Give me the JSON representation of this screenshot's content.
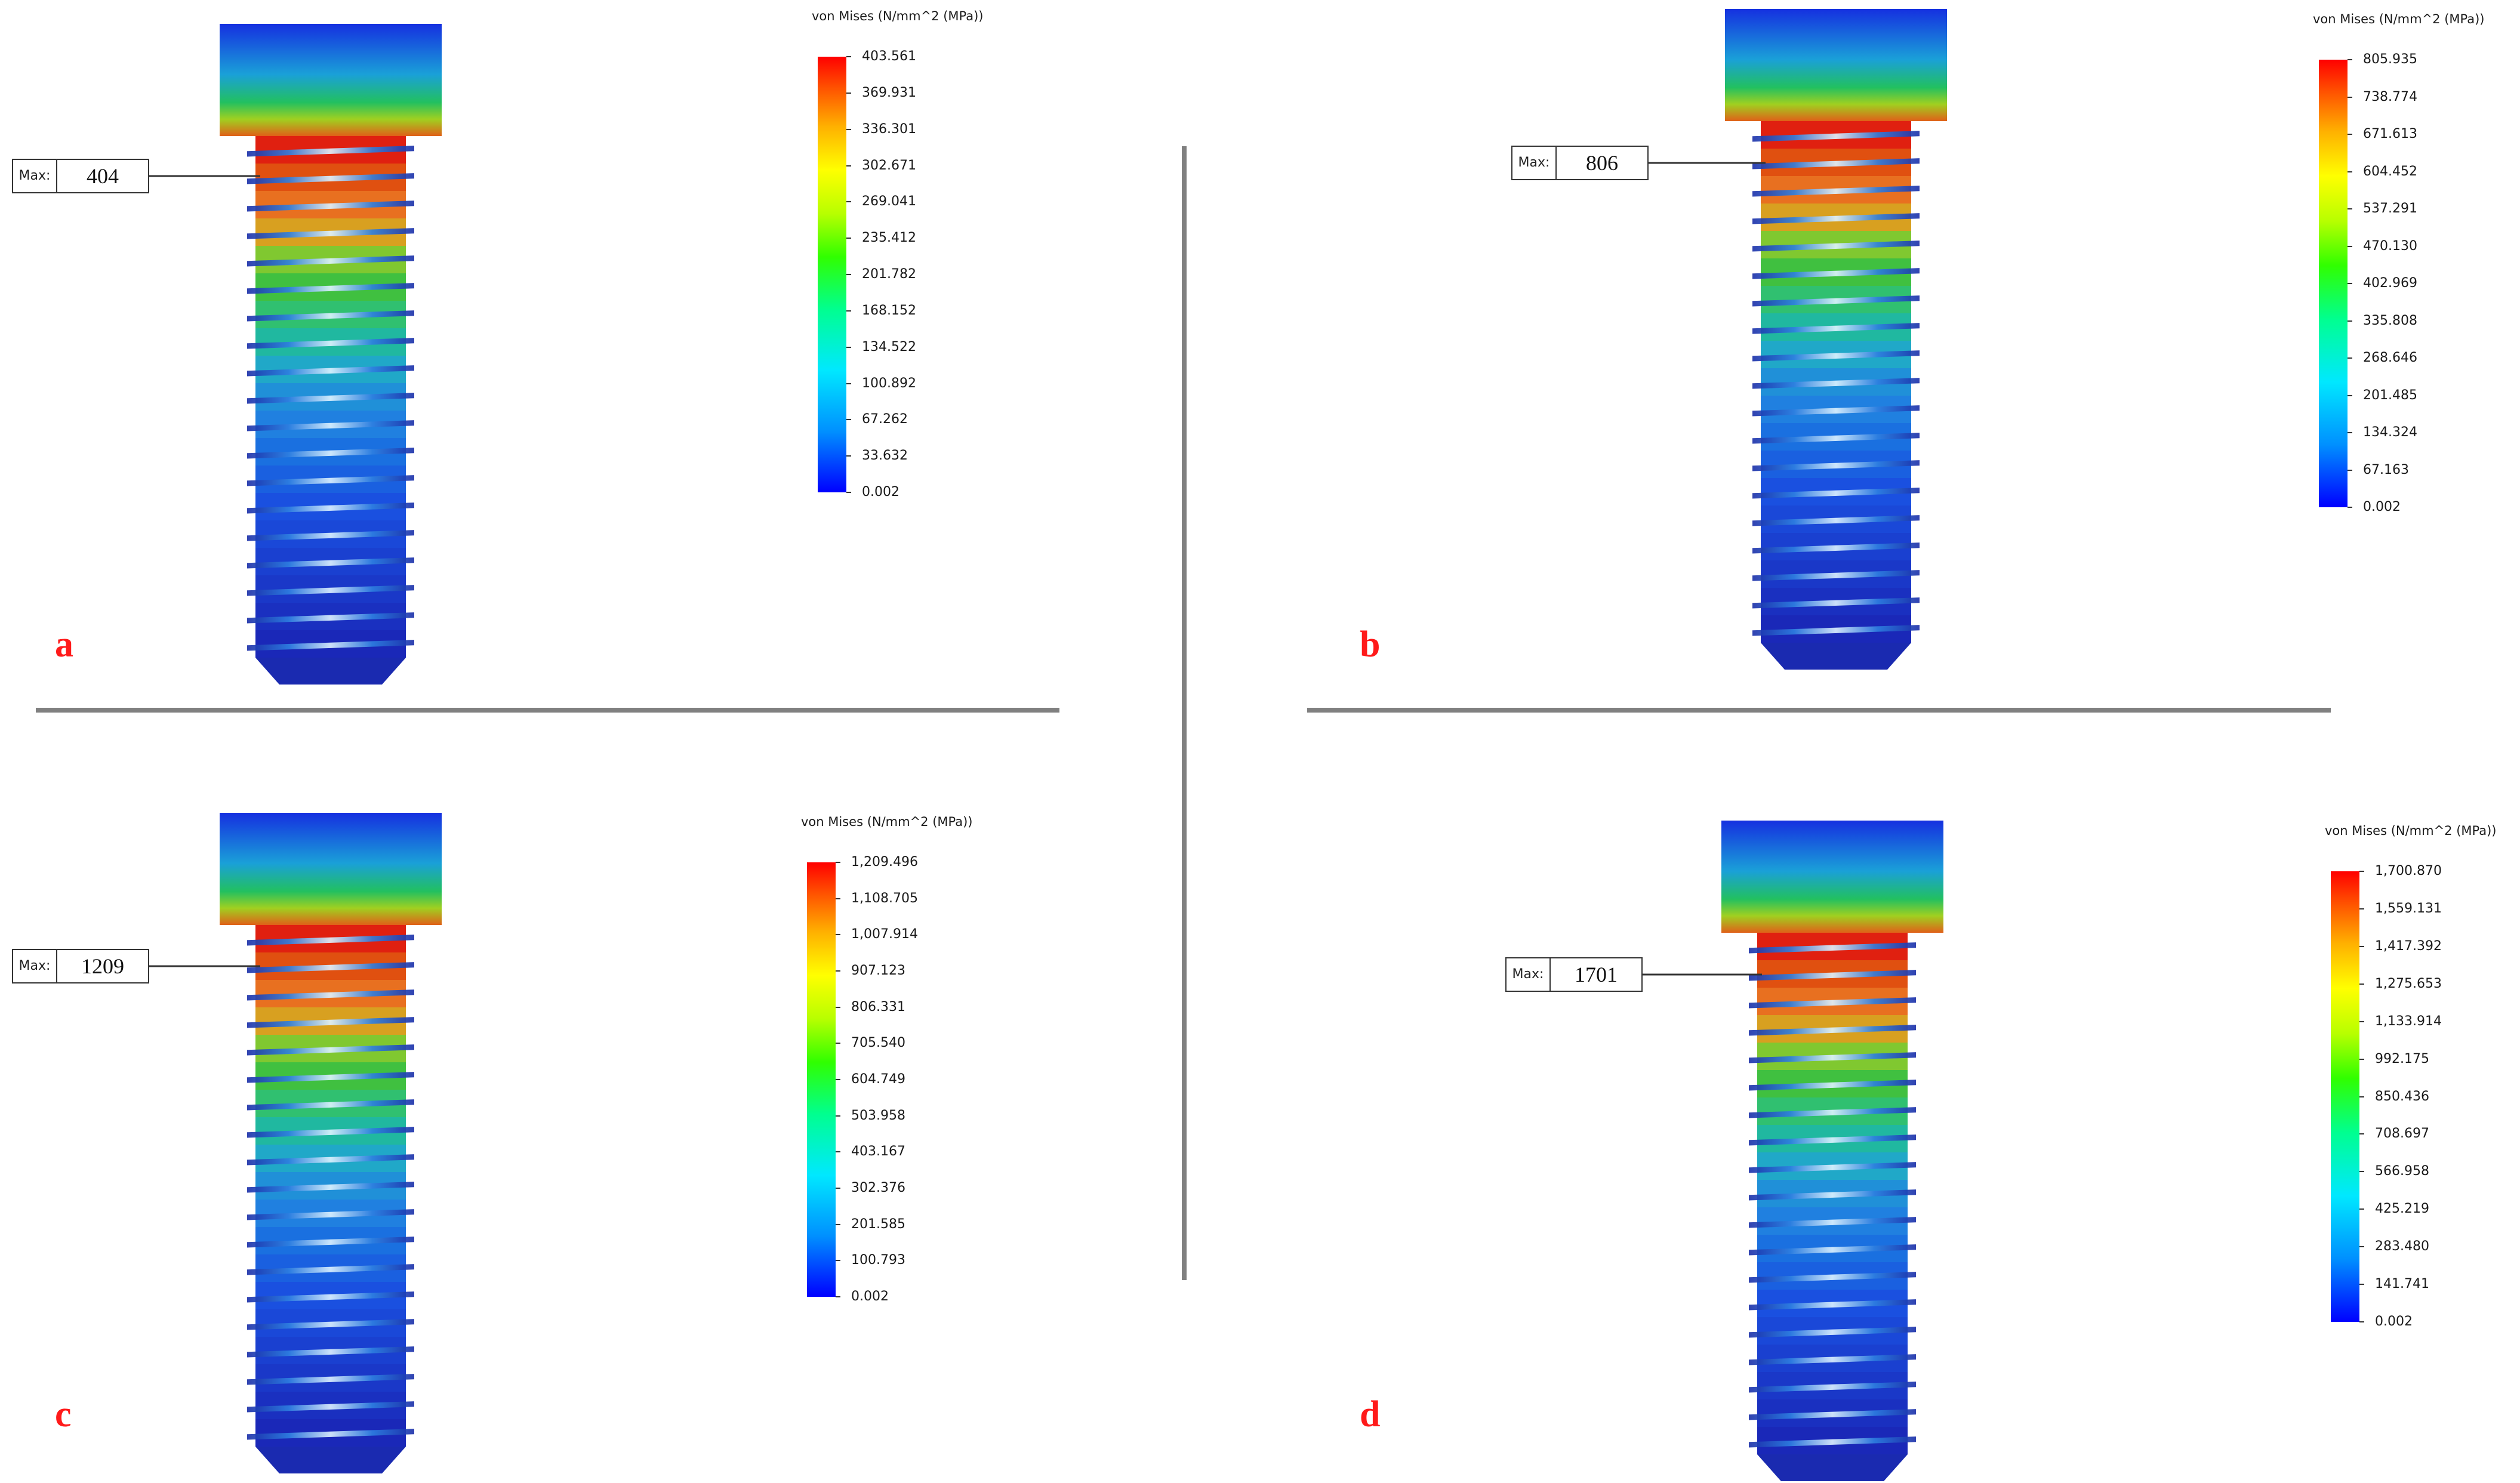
{
  "panels": [
    {
      "letter": "a",
      "legend_title": "von Mises (N/mm^2 (MPa))",
      "ticks": [
        "403.561",
        "369.931",
        "336.301",
        "302.671",
        "269.041",
        "235.412",
        "201.782",
        "168.152",
        "134.522",
        "100.892",
        "67.262",
        "33.632",
        "0.002"
      ],
      "max_tag": "Max:",
      "max_value": "404"
    },
    {
      "letter": "b",
      "legend_title": "von Mises (N/mm^2 (MPa))",
      "ticks": [
        "805.935",
        "738.774",
        "671.613",
        "604.452",
        "537.291",
        "470.130",
        "402.969",
        "335.808",
        "268.646",
        "201.485",
        "134.324",
        "67.163",
        "0.002"
      ],
      "max_tag": "Max:",
      "max_value": "806"
    },
    {
      "letter": "c",
      "legend_title": "von Mises (N/mm^2 (MPa))",
      "ticks": [
        "1,209.496",
        "1,108.705",
        "1,007.914",
        "907.123",
        "806.331",
        "705.540",
        "604.749",
        "503.958",
        "403.167",
        "302.376",
        "201.585",
        "100.793",
        "0.002"
      ],
      "max_tag": "Max:",
      "max_value": "1209"
    },
    {
      "letter": "d",
      "legend_title": "von Mises (N/mm^2 (MPa))",
      "ticks": [
        "1,700.870",
        "1,559.131",
        "1,417.392",
        "1,275.653",
        "1,133.914",
        "992.175",
        "850.436",
        "708.697",
        "566.958",
        "425.219",
        "283.480",
        "141.741",
        "0.002"
      ],
      "max_tag": "Max:",
      "max_value": "1701"
    }
  ],
  "colors": {
    "legend_top": "#ff0000",
    "legend_bottom": "#0000ff",
    "panel_letter": "#ff1a1a",
    "divider": "#808080"
  }
}
